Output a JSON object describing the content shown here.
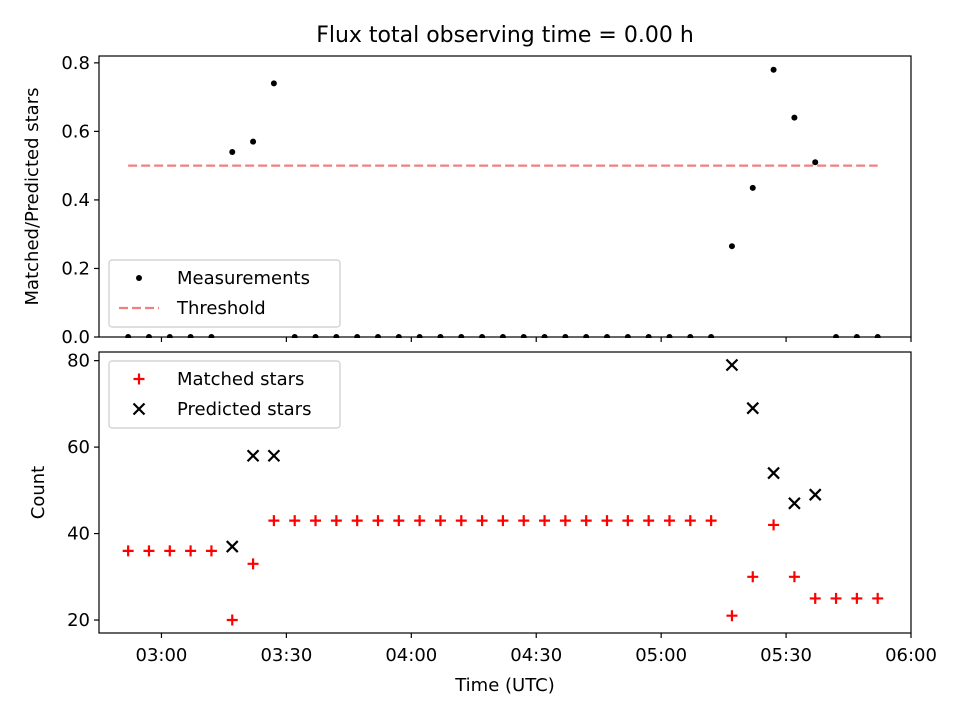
{
  "chart_data": [
    {
      "type": "scatter",
      "title": "Flux total observing time = 0.00 h",
      "xlabel": "",
      "ylabel": "Matched/Predicted stars",
      "xlim": [
        "02:45",
        "06:00"
      ],
      "ylim": [
        0,
        0.82
      ],
      "yticks": [
        "0.0",
        "0.2",
        "0.4",
        "0.6",
        "0.8"
      ],
      "legend": {
        "placement": "lower-left",
        "entries": [
          "Measurements",
          "Threshold"
        ]
      },
      "series": [
        {
          "name": "Measurements",
          "marker": "dot",
          "color": "#000000",
          "points": [
            [
              "02:52",
              0
            ],
            [
              "02:57",
              0
            ],
            [
              "03:02",
              0
            ],
            [
              "03:07",
              0
            ],
            [
              "03:12",
              0
            ],
            [
              "03:17",
              0.54
            ],
            [
              "03:22",
              0.57
            ],
            [
              "03:27",
              0.74
            ],
            [
              "03:32",
              0
            ],
            [
              "03:37",
              0
            ],
            [
              "03:42",
              0
            ],
            [
              "03:47",
              0
            ],
            [
              "03:52",
              0
            ],
            [
              "03:57",
              0
            ],
            [
              "04:02",
              0
            ],
            [
              "04:07",
              0
            ],
            [
              "04:12",
              0
            ],
            [
              "04:17",
              0
            ],
            [
              "04:22",
              0
            ],
            [
              "04:27",
              0
            ],
            [
              "04:32",
              0
            ],
            [
              "04:37",
              0
            ],
            [
              "04:42",
              0
            ],
            [
              "04:47",
              0
            ],
            [
              "04:52",
              0
            ],
            [
              "04:57",
              0
            ],
            [
              "05:02",
              0
            ],
            [
              "05:07",
              0
            ],
            [
              "05:12",
              0
            ],
            [
              "05:17",
              0.265
            ],
            [
              "05:22",
              0.435
            ],
            [
              "05:27",
              0.78
            ],
            [
              "05:32",
              0.64
            ],
            [
              "05:37",
              0.51
            ],
            [
              "05:42",
              0
            ],
            [
              "05:47",
              0
            ],
            [
              "05:52",
              0
            ]
          ]
        },
        {
          "name": "Threshold",
          "style": "dashed",
          "color": "#f08080",
          "points": [
            [
              "02:52",
              0.5
            ],
            [
              "05:52",
              0.5
            ]
          ]
        }
      ]
    },
    {
      "type": "scatter",
      "title": "",
      "xlabel": "Time (UTC)",
      "ylabel": "Count",
      "xlim": [
        "02:45",
        "06:00"
      ],
      "ylim": [
        17,
        82
      ],
      "xticks": [
        "03:00",
        "03:30",
        "04:00",
        "04:30",
        "05:00",
        "05:30",
        "06:00"
      ],
      "yticks": [
        "20",
        "40",
        "60",
        "80"
      ],
      "legend": {
        "placement": "upper-left",
        "entries": [
          "Matched stars",
          "Predicted stars"
        ]
      },
      "series": [
        {
          "name": "Matched stars",
          "marker": "plus",
          "color": "#ff0000",
          "points": [
            [
              "02:52",
              36
            ],
            [
              "02:57",
              36
            ],
            [
              "03:02",
              36
            ],
            [
              "03:07",
              36
            ],
            [
              "03:12",
              36
            ],
            [
              "03:17",
              20
            ],
            [
              "03:22",
              33
            ],
            [
              "03:27",
              43
            ],
            [
              "03:32",
              43
            ],
            [
              "03:37",
              43
            ],
            [
              "03:42",
              43
            ],
            [
              "03:47",
              43
            ],
            [
              "03:52",
              43
            ],
            [
              "03:57",
              43
            ],
            [
              "04:02",
              43
            ],
            [
              "04:07",
              43
            ],
            [
              "04:12",
              43
            ],
            [
              "04:17",
              43
            ],
            [
              "04:22",
              43
            ],
            [
              "04:27",
              43
            ],
            [
              "04:32",
              43
            ],
            [
              "04:37",
              43
            ],
            [
              "04:42",
              43
            ],
            [
              "04:47",
              43
            ],
            [
              "04:52",
              43
            ],
            [
              "04:57",
              43
            ],
            [
              "05:02",
              43
            ],
            [
              "05:07",
              43
            ],
            [
              "05:12",
              43
            ],
            [
              "05:17",
              21
            ],
            [
              "05:22",
              30
            ],
            [
              "05:27",
              42
            ],
            [
              "05:32",
              30
            ],
            [
              "05:37",
              25
            ],
            [
              "05:42",
              25
            ],
            [
              "05:47",
              25
            ],
            [
              "05:52",
              25
            ]
          ]
        },
        {
          "name": "Predicted stars",
          "marker": "x",
          "color": "#000000",
          "points": [
            [
              "03:17",
              37
            ],
            [
              "03:22",
              58
            ],
            [
              "03:27",
              58
            ],
            [
              "05:17",
              79
            ],
            [
              "05:22",
              69
            ],
            [
              "05:27",
              54
            ],
            [
              "05:32",
              47
            ],
            [
              "05:37",
              49
            ]
          ]
        }
      ]
    }
  ]
}
